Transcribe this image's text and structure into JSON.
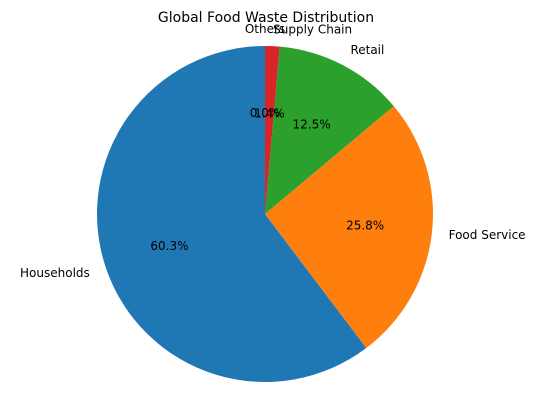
{
  "chart_data": {
    "type": "pie",
    "title": "Global Food Waste Distribution",
    "categories": [
      "Households",
      "Food Service",
      "Retail",
      "Supply Chain",
      "Others"
    ],
    "values": [
      60.3,
      25.8,
      12.5,
      1.4,
      0.0
    ],
    "percent_labels": [
      "60.3%",
      "25.8%",
      "12.5%",
      "1.4%",
      "0.0%"
    ],
    "colors": [
      "#1f77b4",
      "#ff7f0e",
      "#2ca02c",
      "#d62728",
      "#9467bd"
    ],
    "start_angle": 90,
    "direction": "counterclockwise"
  }
}
